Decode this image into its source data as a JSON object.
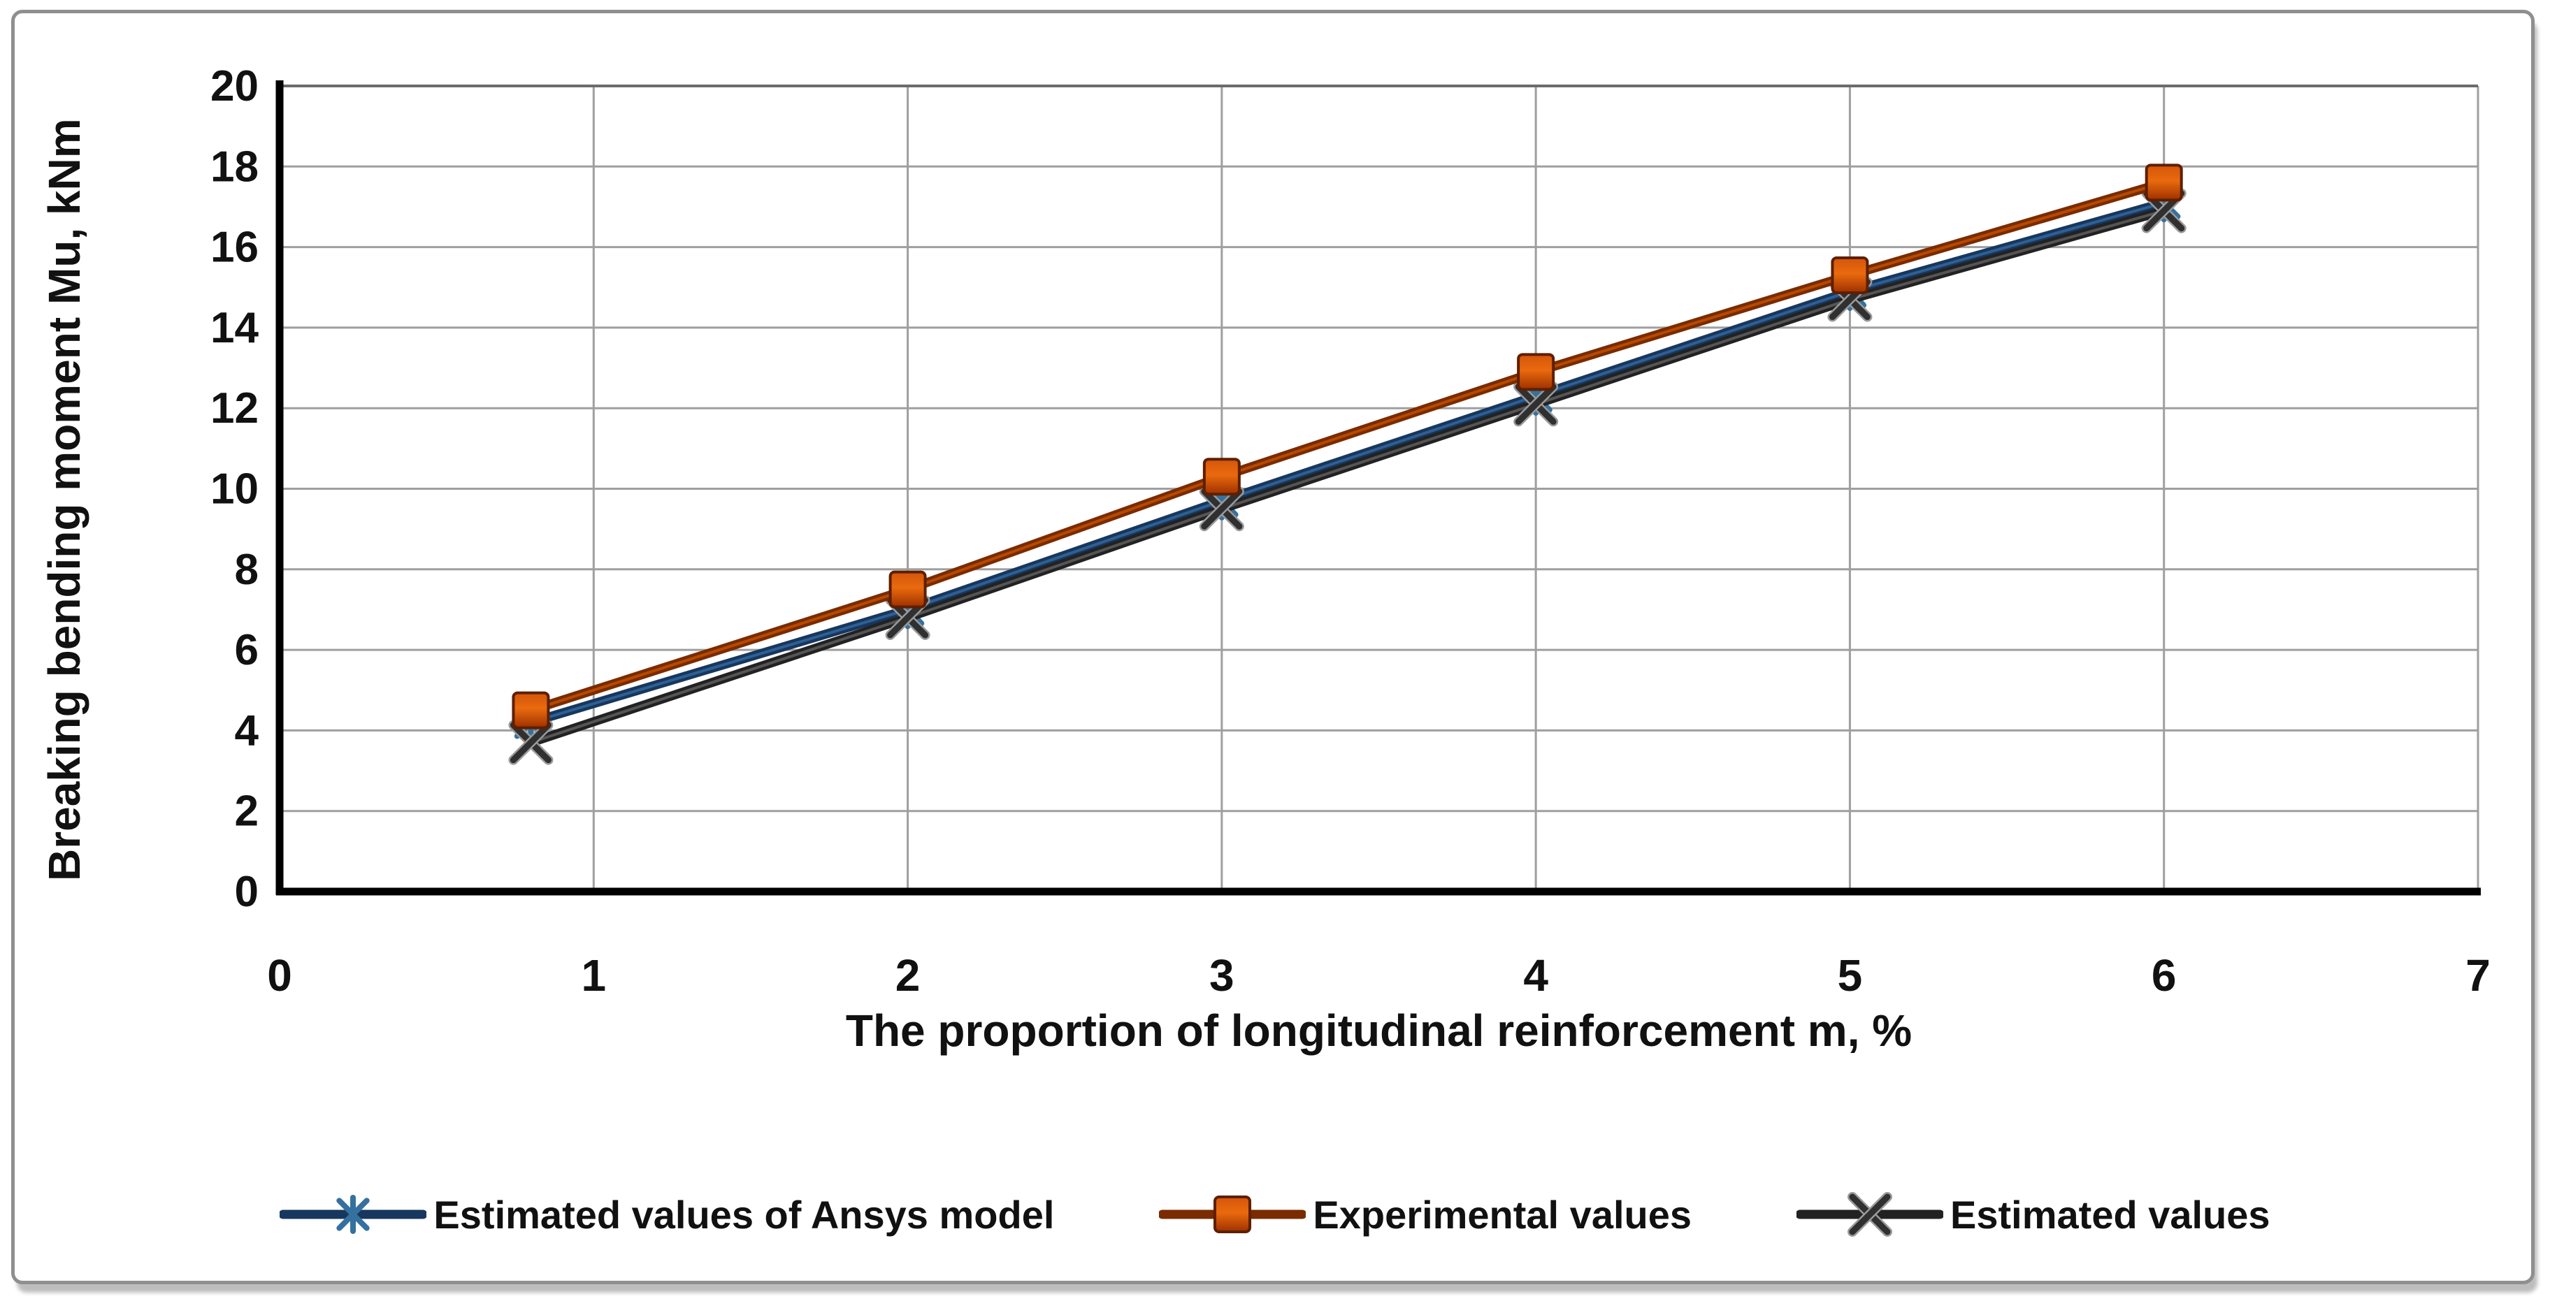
{
  "chart_data": {
    "type": "line",
    "title": "",
    "xlabel": "The proportion of longitudinal reinforcement m, %",
    "ylabel": "Breaking bending moment Mu, kNm",
    "xlim": [
      0,
      7
    ],
    "ylim": [
      0,
      20
    ],
    "x_ticks": [
      0,
      1,
      2,
      3,
      4,
      5,
      6,
      7
    ],
    "y_ticks": [
      0,
      2,
      4,
      6,
      8,
      10,
      12,
      14,
      16,
      18,
      20
    ],
    "grid": true,
    "legend_position": "bottom",
    "x": [
      0.8,
      2,
      3,
      4,
      5,
      6
    ],
    "series": [
      {
        "name": "Estimated values of Ansys model",
        "marker": "asterisk",
        "line_color": "#17375e",
        "line_highlight": "#2e6093",
        "marker_color": "#35719f",
        "values": [
          4.2,
          7.0,
          9.7,
          12.3,
          14.9,
          17.1
        ]
      },
      {
        "name": "Experimental values",
        "marker": "square",
        "line_color": "#7a2b00",
        "line_highlight": "#b74a00",
        "marker_color": "#d4550b",
        "marker_color2": "#9e3000",
        "marker_edge": "#5e1f00",
        "values": [
          4.5,
          7.5,
          10.3,
          12.9,
          15.3,
          17.6
        ]
      },
      {
        "name": "Estimated values",
        "marker": "x",
        "line_color": "#222222",
        "line_highlight": "#555555",
        "marker_color": "#303030",
        "values": [
          3.7,
          6.8,
          9.5,
          12.1,
          14.7,
          16.9
        ]
      }
    ],
    "gridline_color": "#9f9f9f",
    "axis_color": "#000000"
  }
}
